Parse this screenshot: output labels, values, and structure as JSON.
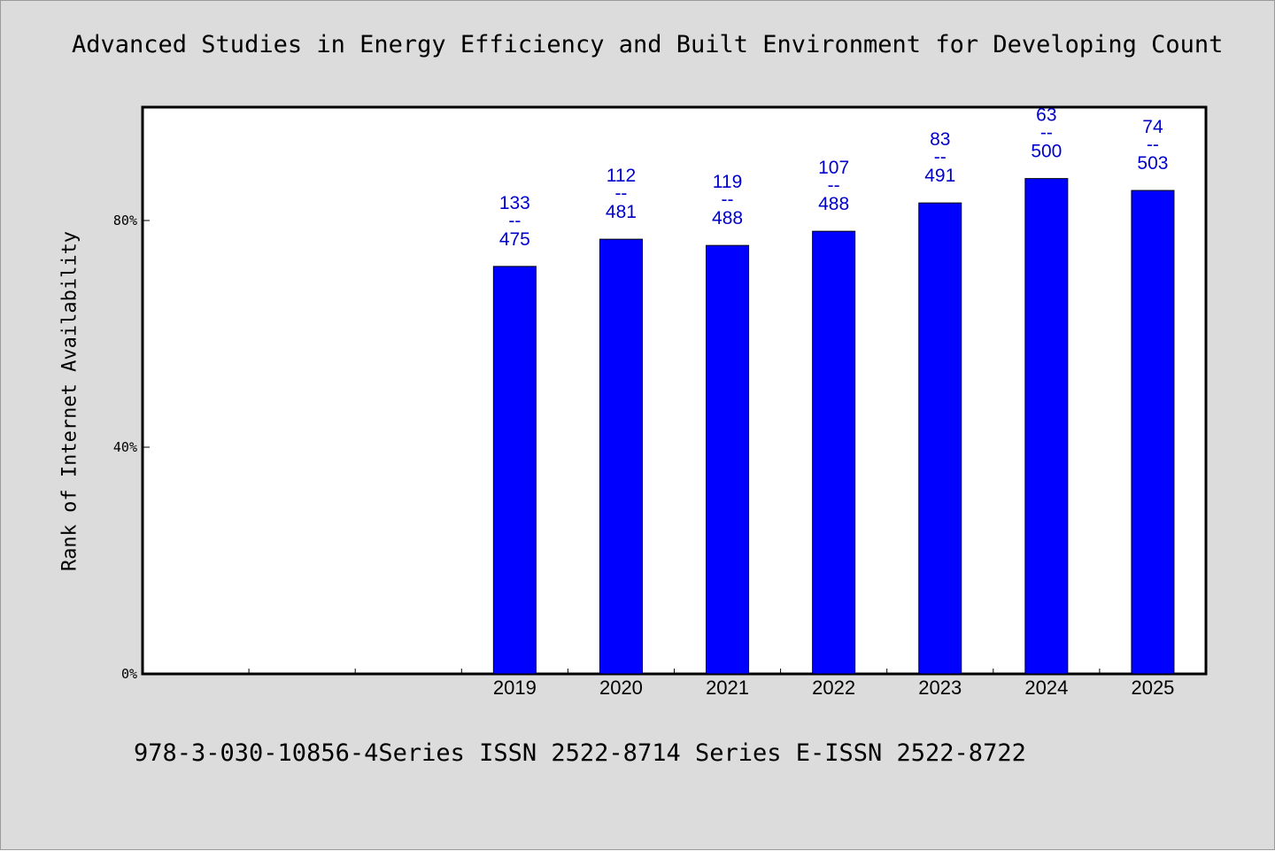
{
  "chart_data": {
    "type": "bar",
    "title": "Advanced Studies in Energy Efficiency and Built Environment for Developing Count",
    "ylabel": "Rank of Internet Availability",
    "xlabel": "",
    "ylim": [
      0,
      100
    ],
    "yticks": [
      {
        "value": 0,
        "label": "0%"
      },
      {
        "value": 40,
        "label": "40%"
      },
      {
        "value": 80,
        "label": "80%"
      }
    ],
    "categories": [
      "2019",
      "2020",
      "2021",
      "2022",
      "2023",
      "2024",
      "2025"
    ],
    "values": [
      71.9,
      76.7,
      75.6,
      78.1,
      83.1,
      87.4,
      85.3
    ],
    "data_labels": [
      {
        "top": "133",
        "sep": "--",
        "bottom": "475"
      },
      {
        "top": "112",
        "sep": "--",
        "bottom": "481"
      },
      {
        "top": "119",
        "sep": "--",
        "bottom": "488"
      },
      {
        "top": "107",
        "sep": "--",
        "bottom": "488"
      },
      {
        "top": "83",
        "sep": "--",
        "bottom": "491"
      },
      {
        "top": "63",
        "sep": "--",
        "bottom": "500"
      },
      {
        "top": "74",
        "sep": "--",
        "bottom": "503"
      }
    ],
    "bar_color": "#0000ff",
    "label_color": "#0000cc",
    "background": "#dcdcdc",
    "plot_background": "#ffffff",
    "grid": false,
    "legend": "none"
  },
  "footnote": "978-3-030-10856-4Series ISSN 2522-8714 Series E-ISSN 2522-8722"
}
